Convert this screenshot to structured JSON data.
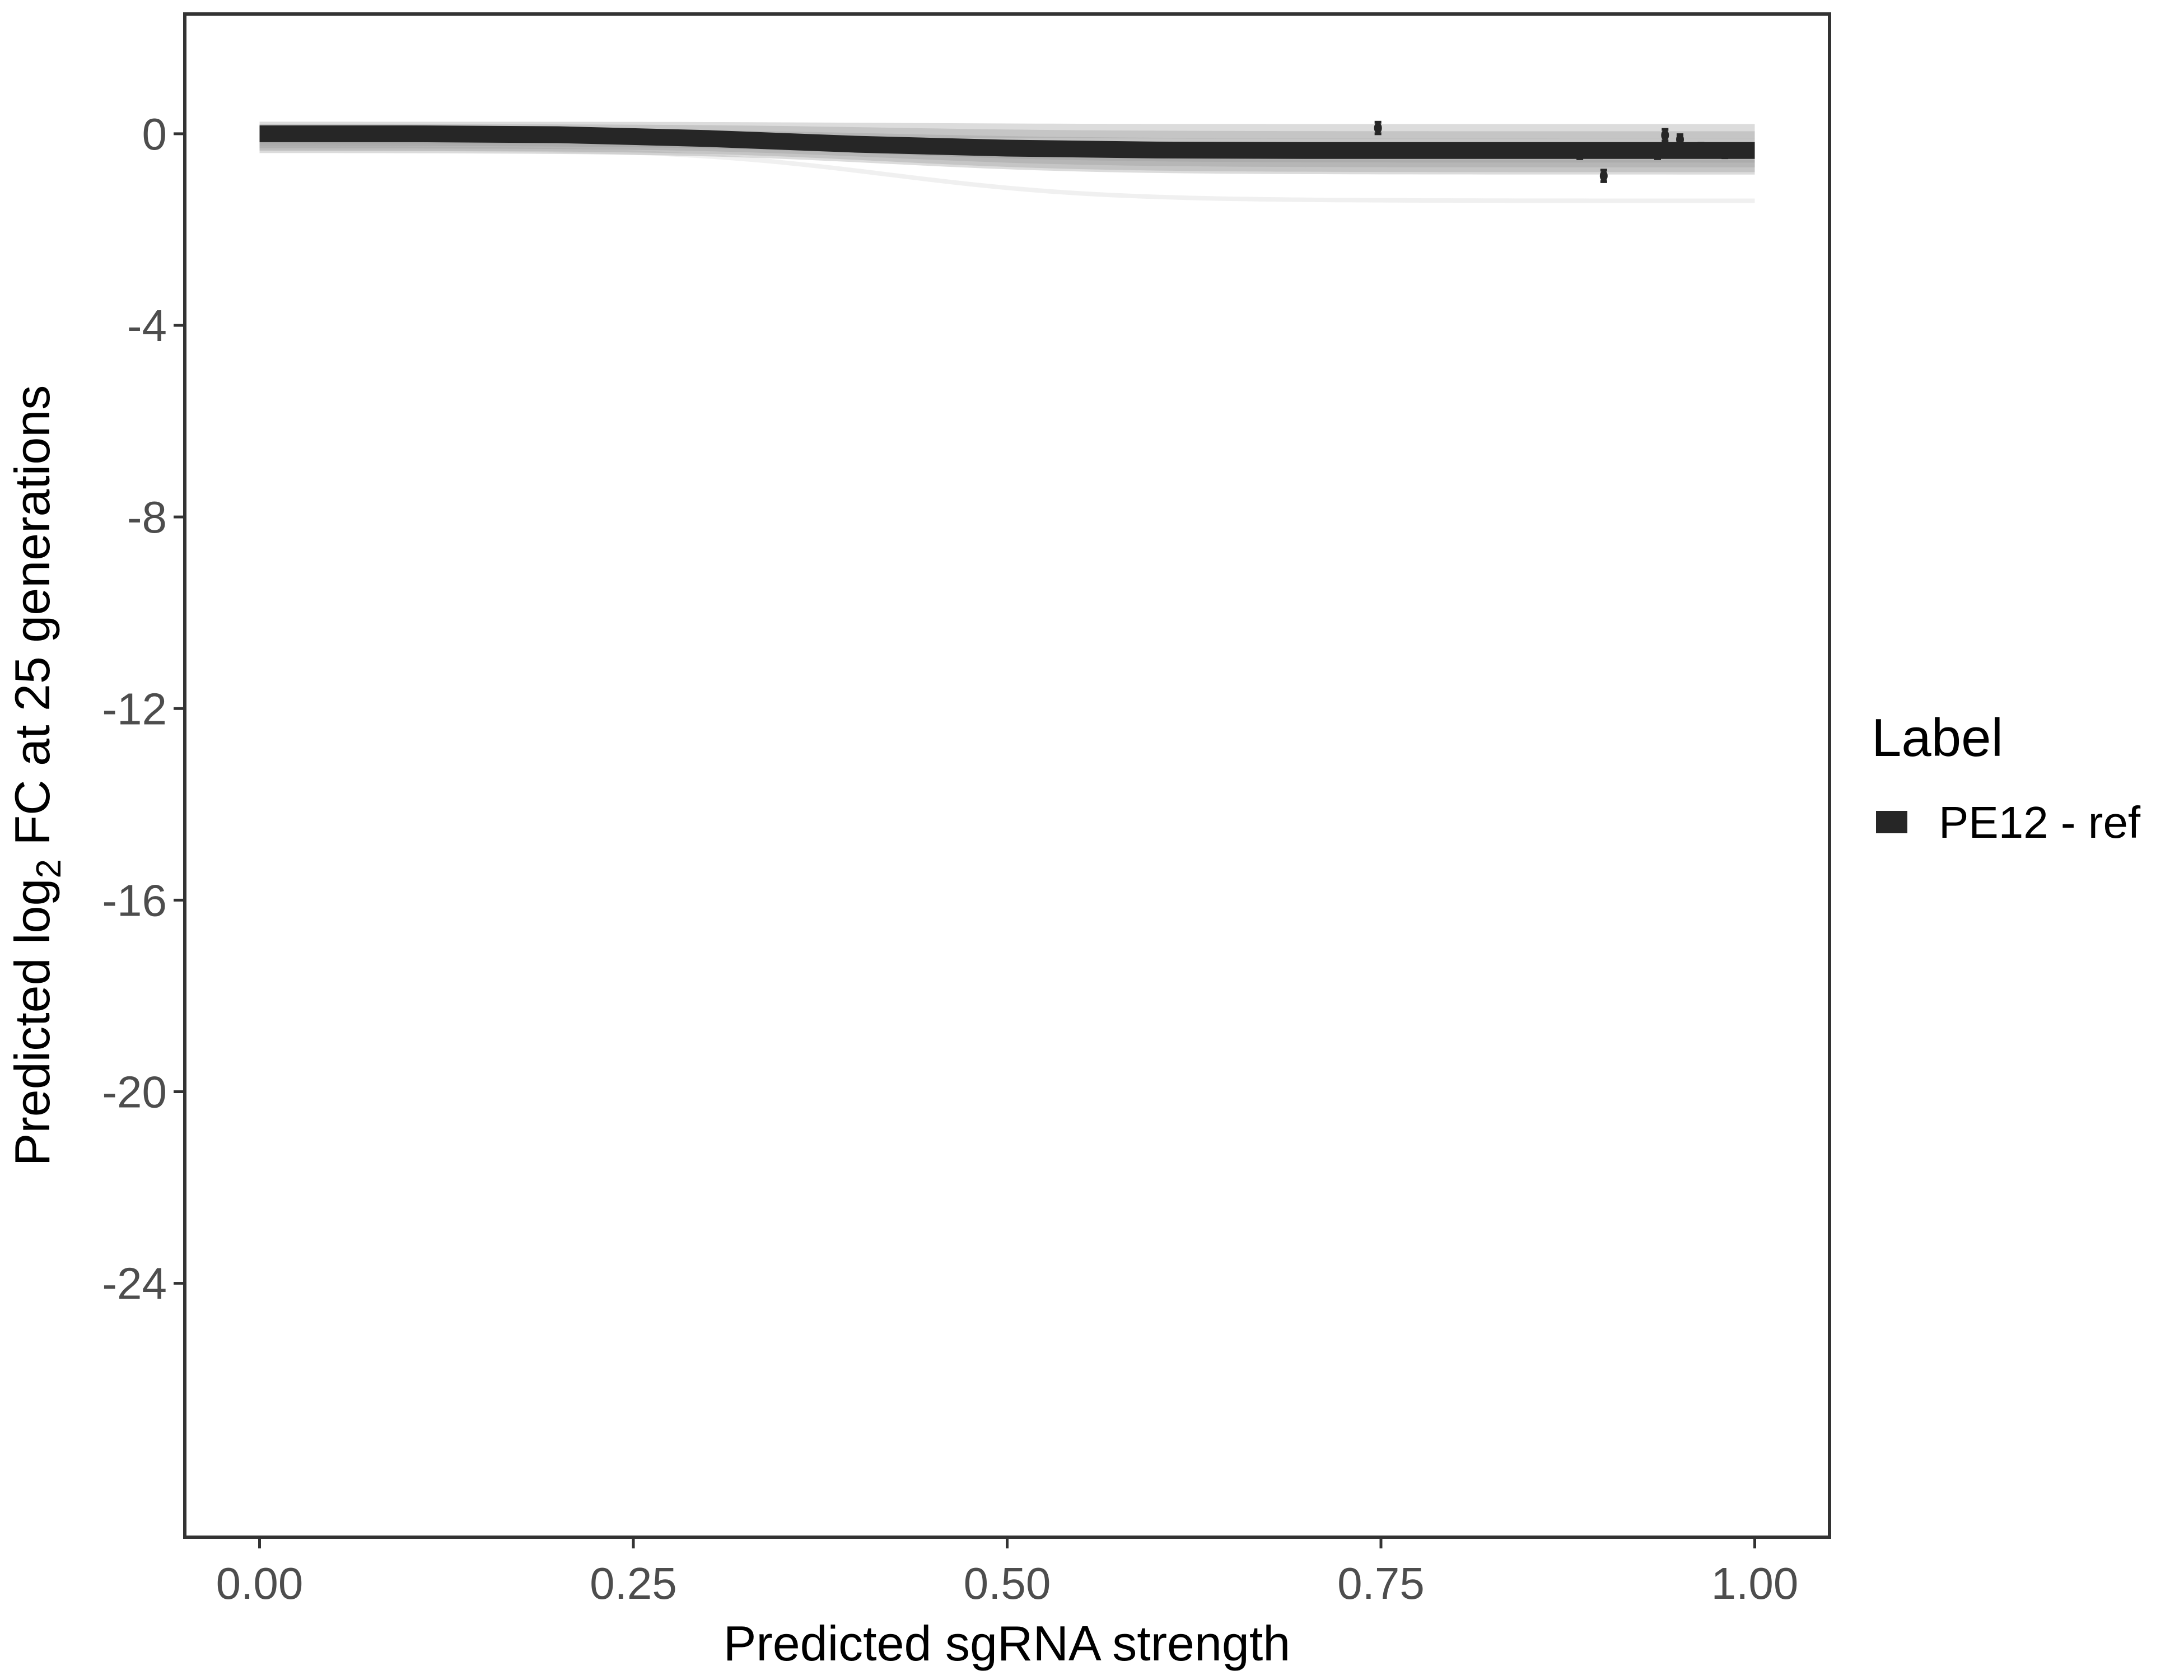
{
  "chart_data": {
    "type": "line",
    "title": "",
    "xlabel": "Predicted sgRNA strength",
    "ylabel_prefix": "Predicted  log",
    "ylabel_sub": "2",
    "ylabel_suffix": " FC at 25 generations",
    "xlim": [
      -0.05,
      1.05
    ],
    "ylim": [
      -29.3,
      2.5
    ],
    "xticks": [
      0,
      0.25,
      0.5,
      0.75,
      1.0
    ],
    "xtick_labels": [
      "0.00",
      "0.25",
      "0.50",
      "0.75",
      "1.00"
    ],
    "yticks": [
      0,
      -4,
      -8,
      -12,
      -16,
      -20,
      -24
    ],
    "ytick_labels": [
      "0",
      "-4",
      "-8",
      "-12",
      "-16",
      "-20",
      "-24"
    ],
    "grid": false,
    "legend": {
      "title": "Label",
      "placement": "right",
      "entries": [
        {
          "label": "PE12 - ref",
          "color": "#262626"
        }
      ]
    },
    "main_curve": {
      "name": "PE12 - ref",
      "color": "#262626",
      "x": [
        0,
        0.1,
        0.2,
        0.3,
        0.4,
        0.5,
        0.6,
        0.7,
        0.8,
        0.9,
        1.0
      ],
      "y": [
        0,
        0,
        -0.02,
        -0.1,
        -0.22,
        -0.3,
        -0.34,
        -0.35,
        -0.35,
        -0.35,
        -0.35
      ]
    },
    "sample_curves_color": "#9a9a9a",
    "sample_curves": [
      {
        "y0": 0.1,
        "y1": 0.05
      },
      {
        "y0": 0.05,
        "y1": -0.1
      },
      {
        "y0": -0.05,
        "y1": -0.25
      },
      {
        "y0": -0.1,
        "y1": -0.45
      },
      {
        "y0": -0.15,
        "y1": -0.55
      },
      {
        "y0": -0.2,
        "y1": -0.65
      },
      {
        "y0": -0.25,
        "y1": -0.7
      },
      {
        "y0": -0.3,
        "y1": -1.4
      }
    ],
    "points": [
      {
        "x": 0.748,
        "y": 0.12,
        "err": 0.12
      },
      {
        "x": 0.883,
        "y": -0.4,
        "err": 0.12
      },
      {
        "x": 0.899,
        "y": -0.88,
        "err": 0.12
      },
      {
        "x": 0.935,
        "y": -0.4,
        "err": 0.12
      },
      {
        "x": 0.94,
        "y": -0.03,
        "err": 0.12
      },
      {
        "x": 0.95,
        "y": -0.12,
        "err": 0.1
      },
      {
        "x": 0.964,
        "y": -0.3,
        "err": 0.1
      },
      {
        "x": 0.98,
        "y": -0.4,
        "err": 0.1
      }
    ]
  }
}
